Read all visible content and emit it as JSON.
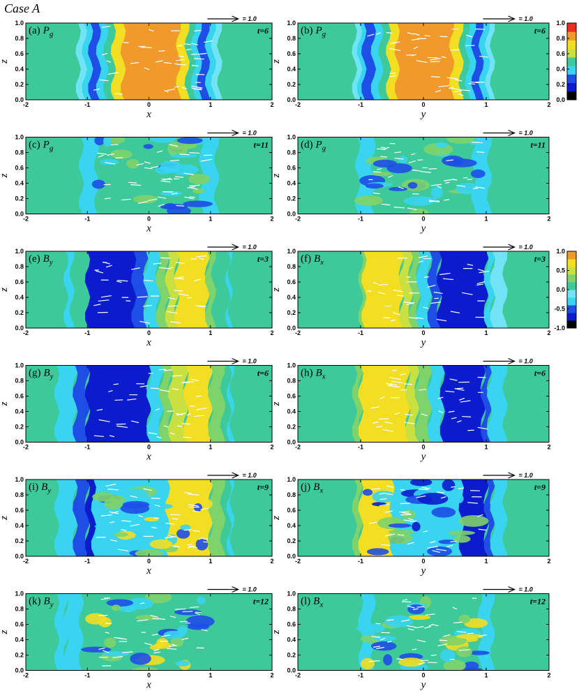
{
  "title": "Case A",
  "chart_data": [
    {
      "type": "contour",
      "label": "(a)",
      "variable": "P",
      "subscript": "g",
      "time": "t=6",
      "reference_vector": "= 1.0",
      "xlabel": "x",
      "ylabel": "z",
      "xlim": [
        -2,
        2
      ],
      "ylim": [
        0,
        1
      ],
      "xticks": [
        -2,
        -1,
        0,
        1,
        2
      ],
      "yticks": [
        {
          "value": 0,
          "label": "0.0"
        },
        0.2,
        0.4,
        0.6,
        0.8,
        {
          "value": 1,
          "label": "1.0"
        }
      ]
    },
    {
      "type": "contour",
      "label": "(b)",
      "variable": "P",
      "subscript": "g",
      "time": "t=6",
      "reference_vector": "= 1.0",
      "xlabel": "y",
      "ylabel": "z",
      "xlim": [
        -2,
        2
      ],
      "ylim": [
        0,
        1
      ],
      "xticks": [
        -2,
        -1,
        0,
        1,
        2
      ],
      "yticks": [
        {
          "value": 0,
          "label": "0.0"
        },
        0.2,
        0.4,
        0.6,
        0.8,
        {
          "value": 1,
          "label": "1.0"
        }
      ]
    },
    {
      "type": "contour",
      "label": "(c)",
      "variable": "P",
      "subscript": "g",
      "time": "t=11",
      "reference_vector": "= 1.0",
      "xlabel": "x",
      "ylabel": "z",
      "xlim": [
        -2,
        2
      ],
      "ylim": [
        0,
        1
      ],
      "xticks": [
        -2,
        -1,
        0,
        1,
        2
      ],
      "yticks": [
        {
          "value": 0,
          "label": "0.0"
        },
        0.2,
        0.4,
        0.6,
        0.8,
        {
          "value": 1,
          "label": "1.0"
        }
      ]
    },
    {
      "type": "contour",
      "label": "(d)",
      "variable": "P",
      "subscript": "g",
      "time": "t=11",
      "reference_vector": "= 1.0",
      "xlabel": "y",
      "ylabel": "z",
      "xlim": [
        -2,
        2
      ],
      "ylim": [
        0,
        1
      ],
      "xticks": [
        -2,
        -1,
        0,
        1,
        2
      ],
      "yticks": [
        {
          "value": 0,
          "label": "0.0"
        },
        0.2,
        0.4,
        0.6,
        0.8,
        {
          "value": 1,
          "label": "1.0"
        }
      ]
    },
    {
      "type": "contour",
      "label": "(e)",
      "variable": "B",
      "subscript": "y",
      "time": "t=3",
      "reference_vector": "= 1.0",
      "xlabel": "x",
      "ylabel": "z",
      "xlim": [
        -2,
        2
      ],
      "ylim": [
        0,
        1
      ],
      "xticks": [
        -2,
        -1,
        0,
        1,
        2
      ],
      "yticks": [
        {
          "value": 0,
          "label": "0.0"
        },
        0.2,
        0.4,
        0.6,
        0.8,
        {
          "value": 1,
          "label": "1.0"
        }
      ]
    },
    {
      "type": "contour",
      "label": "(f)",
      "variable": "B",
      "subscript": "x",
      "time": "t=3",
      "reference_vector": "= 1.0",
      "xlabel": "y",
      "ylabel": "z",
      "xlim": [
        -2,
        2
      ],
      "ylim": [
        0,
        1
      ],
      "xticks": [
        -2,
        -1,
        0,
        1,
        2
      ],
      "yticks": [
        {
          "value": 0,
          "label": "0.0"
        },
        0.2,
        0.4,
        0.6,
        0.8,
        {
          "value": 1,
          "label": "1.0"
        }
      ]
    },
    {
      "type": "contour",
      "label": "(g)",
      "variable": "B",
      "subscript": "y",
      "time": "t=6",
      "reference_vector": "= 1.0",
      "xlabel": "x",
      "ylabel": "z",
      "xlim": [
        -2,
        2
      ],
      "ylim": [
        0,
        1
      ],
      "xticks": [
        -2,
        -1,
        0,
        1,
        2
      ],
      "yticks": [
        {
          "value": 0,
          "label": "0.0"
        },
        0.2,
        0.4,
        0.6,
        0.8,
        {
          "value": 1,
          "label": "1.0"
        }
      ]
    },
    {
      "type": "contour",
      "label": "(h)",
      "variable": "B",
      "subscript": "x",
      "time": "t=6",
      "reference_vector": "= 1.0",
      "xlabel": "y",
      "ylabel": "z",
      "xlim": [
        -2,
        2
      ],
      "ylim": [
        0,
        1
      ],
      "xticks": [
        -2,
        -1,
        0,
        1,
        2
      ],
      "yticks": [
        {
          "value": 0,
          "label": "0.0"
        },
        0.2,
        0.4,
        0.6,
        0.8,
        {
          "value": 1,
          "label": "1.0"
        }
      ]
    },
    {
      "type": "contour",
      "label": "(i)",
      "variable": "B",
      "subscript": "y",
      "time": "t=9",
      "reference_vector": "= 1.0",
      "xlabel": "x",
      "ylabel": "z",
      "xlim": [
        -2,
        2
      ],
      "ylim": [
        0,
        1
      ],
      "xticks": [
        -2,
        -1,
        0,
        1,
        2
      ],
      "yticks": [
        {
          "value": 0,
          "label": "0.0"
        },
        0.2,
        0.4,
        0.6,
        0.8,
        {
          "value": 1,
          "label": "1.0"
        }
      ]
    },
    {
      "type": "contour",
      "label": "(j)",
      "variable": "B",
      "subscript": "x",
      "time": "t=9",
      "reference_vector": "= 1.0",
      "xlabel": "y",
      "ylabel": "z",
      "xlim": [
        -2,
        2
      ],
      "ylim": [
        0,
        1
      ],
      "xticks": [
        -2,
        -1,
        0,
        1,
        2
      ],
      "yticks": [
        {
          "value": 0,
          "label": "0.0"
        },
        0.2,
        0.4,
        0.6,
        0.8,
        {
          "value": 1,
          "label": "1.0"
        }
      ]
    },
    {
      "type": "contour",
      "label": "(k)",
      "variable": "B",
      "subscript": "y",
      "time": "t=12",
      "reference_vector": "= 1.0",
      "xlabel": "x",
      "ylabel": "z",
      "xlim": [
        -2,
        2
      ],
      "ylim": [
        0,
        1
      ],
      "xticks": [
        -2,
        -1,
        0,
        1,
        2
      ],
      "yticks": [
        {
          "value": 0,
          "label": "0.0"
        },
        0.2,
        0.4,
        0.6,
        0.8,
        {
          "value": 1,
          "label": "1.0"
        }
      ]
    },
    {
      "type": "contour",
      "label": "(l)",
      "variable": "B",
      "subscript": "x",
      "time": "t=12",
      "reference_vector": "= 1.0",
      "xlabel": "y",
      "ylabel": "z",
      "xlim": [
        -2,
        2
      ],
      "ylim": [
        0,
        1
      ],
      "xticks": [
        -2,
        -1,
        0,
        1,
        2
      ],
      "yticks": [
        {
          "value": 0,
          "label": "0.0"
        },
        0.2,
        0.4,
        0.6,
        0.8,
        {
          "value": 1,
          "label": "1.0"
        }
      ]
    },
    {
      "type": "colorbar",
      "ylim": [
        0,
        1
      ],
      "yticks": [
        {
          "value": 0,
          "label": "0.0"
        },
        0.2,
        0.4,
        0.6,
        0.8,
        {
          "value": 1,
          "label": "1.0"
        }
      ],
      "colors": [
        "#000000",
        "#0b1ccc",
        "#1e4ee6",
        "#38d4f0",
        "#3dc99a",
        "#c8e040",
        "#f2de22",
        "#f09a2c",
        "#e83020"
      ]
    },
    {
      "type": "colorbar",
      "ylim": [
        -1,
        1
      ],
      "yticks": [
        {
          "value": -1,
          "label": "-1.0"
        },
        -0.5,
        {
          "value": 0,
          "label": "0.0"
        },
        0.5,
        {
          "value": 1,
          "label": "1.0"
        }
      ],
      "colors": [
        "#000000",
        "#0b1ccc",
        "#1e4ee6",
        "#38d4f0",
        "#70e4f4",
        "#3dc99a",
        "#7ed36a",
        "#c8e040",
        "#f2de22",
        "#f09a2c"
      ]
    }
  ]
}
